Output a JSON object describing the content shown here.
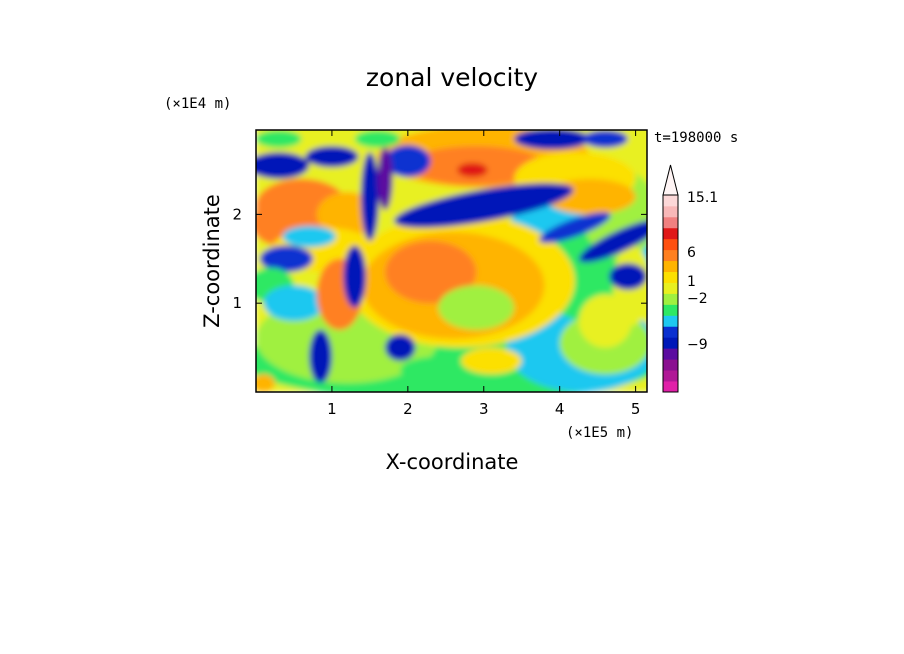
{
  "chart_data": {
    "type": "heatmap",
    "title": "zonal velocity",
    "xlabel": "X-coordinate",
    "ylabel": "Z-coordinate",
    "x_unit": "(×1E5 m)",
    "y_unit": "(×1E4 m)",
    "time_label": "t=198000 s",
    "xlim": [
      0,
      5.15
    ],
    "ylim": [
      0,
      2.95
    ],
    "x_ticks": [
      1,
      2,
      3,
      4,
      5
    ],
    "y_ticks": [
      1,
      2
    ],
    "colorbar": {
      "levels": [
        -15,
        -12,
        -9,
        -6,
        -4,
        -2,
        -1,
        0,
        0.5,
        1,
        2,
        3,
        4.5,
        6,
        8,
        10,
        12,
        15.1
      ],
      "colors": [
        "#e020a8",
        "#b01896",
        "#8a1090",
        "#5c0ca0",
        "#0018b8",
        "#0a30d0",
        "#1ec8f0",
        "#2ee864",
        "#a0f040",
        "#e8f020",
        "#fce000",
        "#ffb400",
        "#ff8020",
        "#ff5010",
        "#e01818",
        "#f08080",
        "#f8b8b8",
        "#fcd8d8"
      ],
      "labels": [
        "15.1",
        "6",
        "1",
        "-2",
        "-9"
      ],
      "top_arrow": true
    },
    "field_description": "2D contour field of zonal velocity; dominant yellow/orange/green background with dark-blue negative bands near top and a large orange positive blob near x=2.5, z=1.2"
  }
}
